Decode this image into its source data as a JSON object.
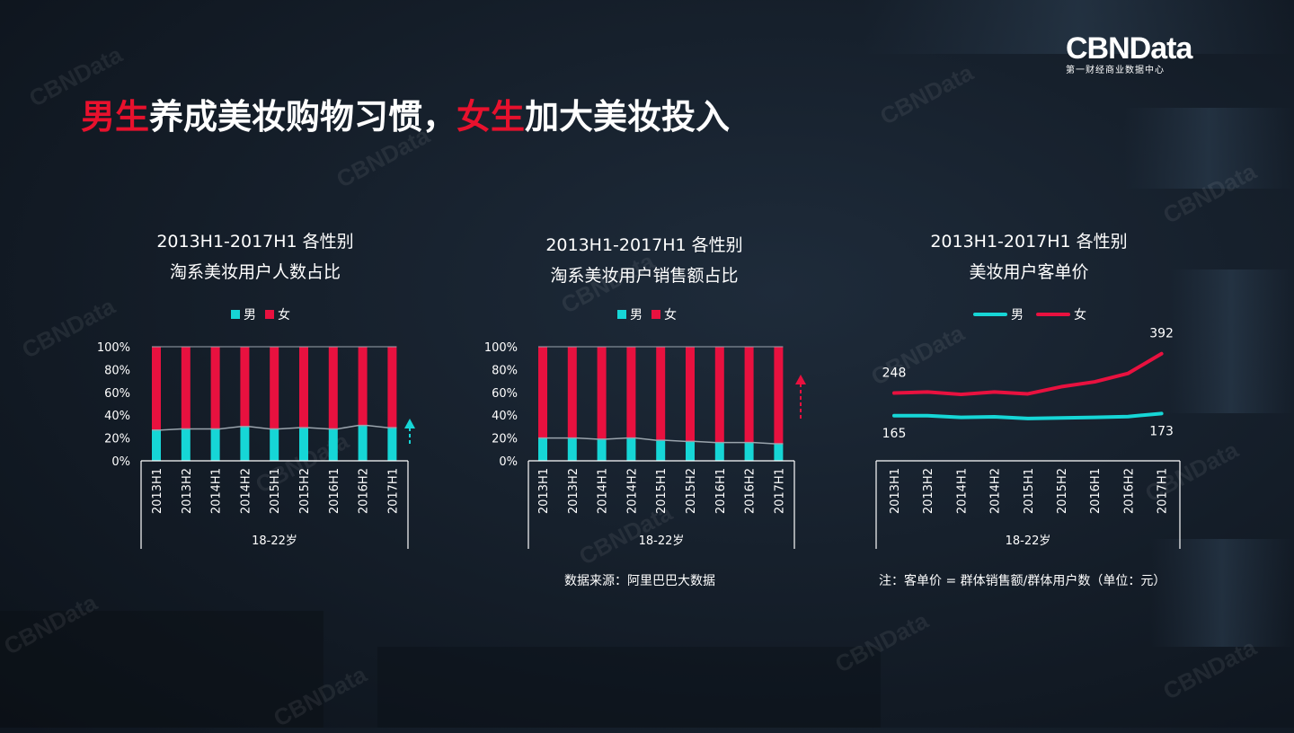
{
  "brand": {
    "name": "CBNData",
    "subtitle": "第一财经商业数据中心"
  },
  "headline": {
    "p1": "男生",
    "p2": "养成美妆购物习惯，",
    "p3": "女生",
    "p4": "加大美妆投入"
  },
  "colors": {
    "male": "#16d6d6",
    "female": "#e8113f",
    "accent": "#e8112d"
  },
  "watermark": "CBNData",
  "charts": [
    {
      "title_line1": "2013H1-2017H1 各性别",
      "title_line2": "淘系美妆用户人数占比",
      "legend_male": "男",
      "legend_female": "女",
      "group_label": "18-22岁"
    },
    {
      "title_line1": "2013H1-2017H1 各性别",
      "title_line2": "淘系美妆用户销售额占比",
      "legend_male": "男",
      "legend_female": "女",
      "group_label": "18-22岁"
    },
    {
      "title_line1": "2013H1-2017H1 各性别",
      "title_line2": "美妆用户客单价",
      "legend_male": "男",
      "legend_female": "女",
      "group_label": "18-22岁"
    }
  ],
  "source_note": "数据来源：阿里巴巴大数据",
  "formula_note": "注：客单价 = 群体销售额/群体用户数（单位：元）",
  "chart_data": [
    {
      "type": "bar",
      "stacked": true,
      "title": "2013H1-2017H1 各性别 淘系美妆用户人数占比",
      "categories": [
        "2013H1",
        "2013H2",
        "2014H1",
        "2014H2",
        "2015H1",
        "2015H2",
        "2016H1",
        "2016H2",
        "2017H1"
      ],
      "yticks": [
        "0%",
        "20%",
        "40%",
        "60%",
        "80%",
        "100%"
      ],
      "ylim": [
        0,
        100
      ],
      "xlabel": "18-22岁",
      "series": [
        {
          "name": "男",
          "values": [
            27,
            28,
            28,
            30,
            28,
            29,
            28,
            31,
            29
          ]
        },
        {
          "name": "女",
          "values": [
            73,
            72,
            72,
            70,
            72,
            71,
            72,
            69,
            71
          ]
        }
      ],
      "arrow": "up"
    },
    {
      "type": "bar",
      "stacked": true,
      "title": "2013H1-2017H1 各性别 淘系美妆用户销售额占比",
      "categories": [
        "2013H1",
        "2013H2",
        "2014H1",
        "2014H2",
        "2015H1",
        "2015H2",
        "2016H1",
        "2016H2",
        "2017H1"
      ],
      "yticks": [
        "0%",
        "20%",
        "40%",
        "60%",
        "80%",
        "100%"
      ],
      "ylim": [
        0,
        100
      ],
      "xlabel": "18-22岁",
      "series": [
        {
          "name": "男",
          "values": [
            20,
            20,
            19,
            20,
            18,
            17,
            16,
            16,
            15
          ]
        },
        {
          "name": "女",
          "values": [
            80,
            80,
            81,
            80,
            82,
            83,
            84,
            84,
            85
          ]
        }
      ],
      "arrow": "up"
    },
    {
      "type": "line",
      "title": "2013H1-2017H1 各性别 美妆用户客单价",
      "categories": [
        "2013H1",
        "2013H2",
        "2014H1",
        "2014H2",
        "2015H1",
        "2015H2",
        "2016H1",
        "2016H2",
        "2017H1"
      ],
      "xlabel": "18-22岁",
      "series": [
        {
          "name": "男",
          "values": [
            165,
            165,
            159,
            161,
            155,
            157,
            159,
            162,
            173
          ],
          "first_label": "165",
          "last_label": "173"
        },
        {
          "name": "女",
          "values": [
            248,
            252,
            243,
            252,
            245,
            271,
            289,
            320,
            392
          ],
          "first_label": "248",
          "last_label": "392"
        }
      ]
    }
  ]
}
